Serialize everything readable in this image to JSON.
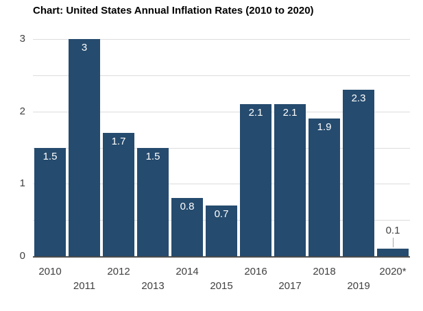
{
  "title": "Chart: United States Annual Inflation Rates (2010 to 2020)",
  "chart_data": {
    "type": "bar",
    "title": "Chart: United States Annual Inflation Rates (2010 to 2020)",
    "categories": [
      "2010",
      "2011",
      "2012",
      "2013",
      "2014",
      "2015",
      "2016",
      "2017",
      "2018",
      "2019",
      "2020*"
    ],
    "values": [
      1.5,
      3,
      1.7,
      1.5,
      0.8,
      0.7,
      2.1,
      2.1,
      1.9,
      2.3,
      0.1
    ],
    "data_labels": [
      "1.5",
      "3",
      "1.7",
      "1.5",
      "0.8",
      "0.7",
      "2.1",
      "2.1",
      "1.9",
      "2.3",
      "0.1"
    ],
    "xlabel": "",
    "ylabel": "",
    "ylim": [
      0,
      3
    ],
    "yticks": [
      0,
      1,
      2,
      3
    ],
    "gridline_step": 0.5,
    "grid": true,
    "legend": false,
    "bar_color": "#254B6E",
    "grid_color": "#DCDCDC",
    "axis_line_color": "#4D4D4D",
    "tick_label_color": "#404040",
    "label_color_inside": "#FFFFFF",
    "label_color_outside": "#404040",
    "leader_line_color": "#A6A6A6"
  }
}
